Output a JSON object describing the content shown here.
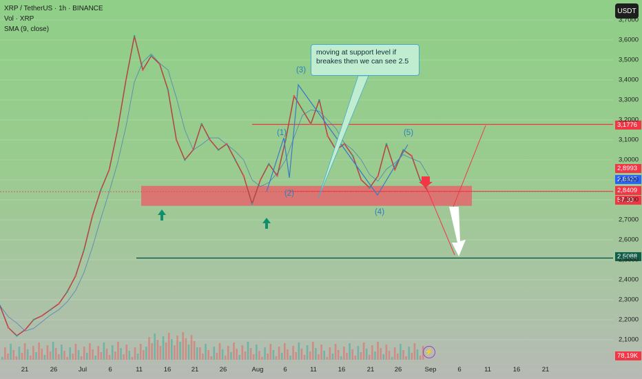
{
  "header": {
    "title": "XRP / TetherUS · 1h · BINANCE",
    "vol": "Vol · XRP",
    "sma": "SMA (9, close)"
  },
  "currency_button": "USDT",
  "annotation": {
    "text": "moving at support level if breakes then we can see 2.5"
  },
  "wave_labels": [
    "(1)",
    "(2)",
    "(3)",
    "(4)",
    "(5)"
  ],
  "price_tags": {
    "resistance": "3,1776",
    "p1": "2,8993",
    "p2": "2,8427",
    "last": "2,8409",
    "countdown": "57:33",
    "target": "2,5088",
    "volume": "78,19K"
  },
  "colors": {
    "up": "#26a69a",
    "down": "#ef5350",
    "resistance": "#f23645",
    "target": "#0f5f4a",
    "zone": "#e8606a",
    "wave": "#3a79c9",
    "sma": "#2962ff"
  },
  "chart_data": {
    "type": "line",
    "symbol": "XRP / TetherUS",
    "interval": "1h",
    "ylim": [
      2.05,
      3.72
    ],
    "y_ticks": [
      3.7,
      3.6,
      3.5,
      3.4,
      3.3,
      3.2,
      3.1,
      3.0,
      2.9,
      2.8,
      2.7,
      2.6,
      2.5,
      2.4,
      2.3,
      2.2,
      2.1
    ],
    "y_tick_labels": [
      "3,7000",
      "3,6000",
      "3,5000",
      "3,4000",
      "3,3000",
      "3,2000",
      "3,1000",
      "3,0000",
      "2,9000",
      "2,8000",
      "2,7000",
      "2,6000",
      "2,5000",
      "2,4000",
      "2,3000",
      "2,2000",
      "2,1000"
    ],
    "x_ticks": [
      "21",
      "26",
      "Jul",
      "6",
      "11",
      "16",
      "21",
      "26",
      "Aug",
      "6",
      "11",
      "16",
      "21",
      "26",
      "Sep",
      "6",
      "11",
      "16",
      "21"
    ],
    "series": [
      {
        "values": [
          2.27,
          2.16,
          2.12,
          2.15,
          2.2,
          2.22,
          2.25,
          2.28,
          2.34,
          2.42,
          2.55,
          2.72,
          2.85,
          2.95,
          3.15,
          3.4,
          3.62,
          3.45,
          3.52,
          3.48,
          3.35,
          3.1,
          3.0,
          3.05,
          3.18,
          3.1,
          3.05,
          3.08,
          3.0,
          2.92,
          2.78,
          2.9,
          2.98,
          2.92,
          3.1,
          3.32,
          3.25,
          3.18,
          3.3,
          3.12,
          3.05,
          3.08,
          3.02,
          2.9,
          2.86,
          2.92,
          3.08,
          2.95,
          3.05,
          3.02,
          2.9,
          2.84
        ]
      }
    ],
    "resistance_level": 3.1776,
    "support_zone": [
      2.77,
      2.87
    ],
    "target_level": 2.5088,
    "last_price": 2.8409
  }
}
